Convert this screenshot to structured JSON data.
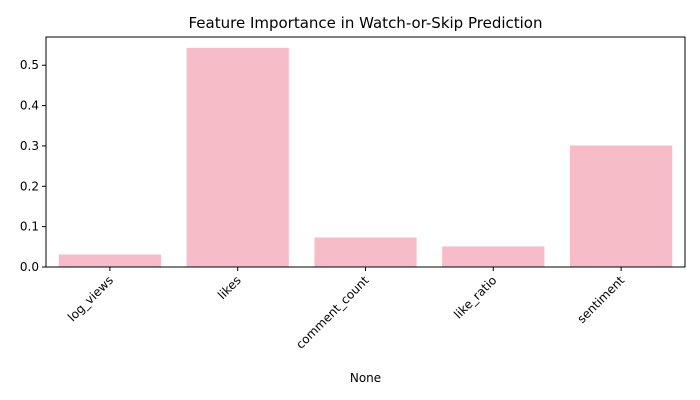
{
  "chart_data": {
    "type": "bar",
    "title": "Feature Importance in Watch-or-Skip Prediction",
    "xlabel": "None",
    "ylabel": "",
    "categories": [
      "log_views",
      "likes",
      "comment_count",
      "like_ratio",
      "sentiment"
    ],
    "values": [
      0.031,
      0.543,
      0.073,
      0.051,
      0.301
    ],
    "ylim": [
      0,
      0.57
    ],
    "yticks": [
      "0.0",
      "0.1",
      "0.2",
      "0.3",
      "0.4",
      "0.5"
    ],
    "bar_color": "#f6bcc8",
    "grid": false,
    "legend": "none"
  }
}
